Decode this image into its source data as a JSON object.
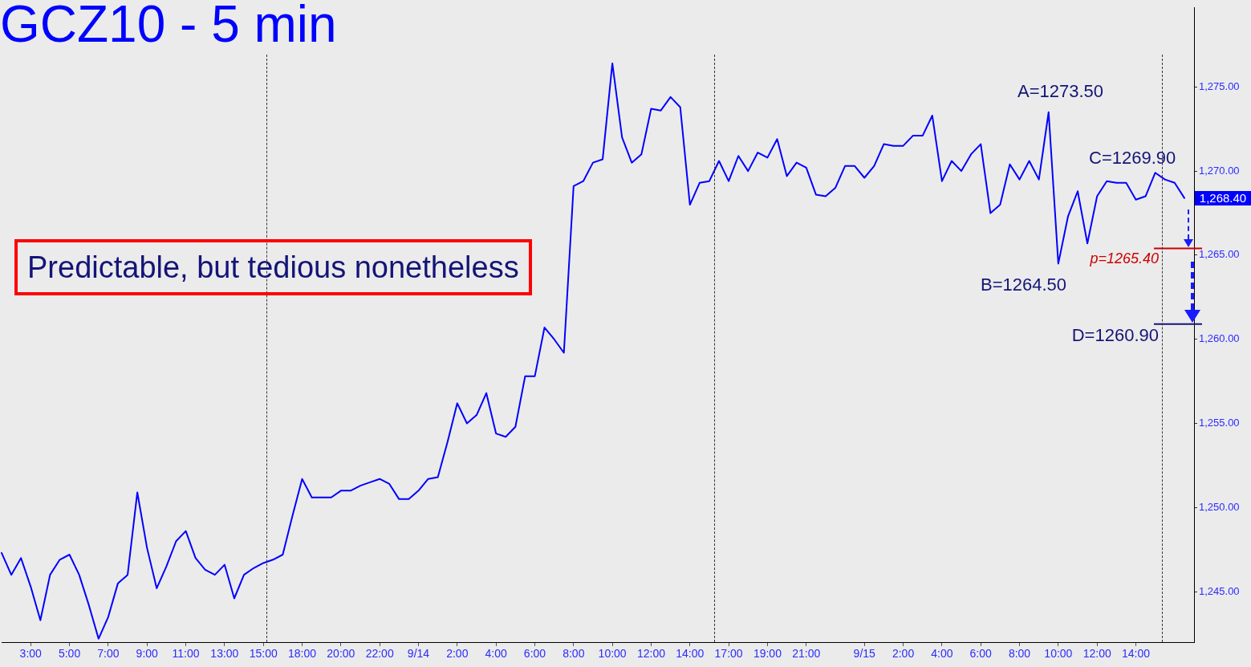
{
  "chart_data": {
    "type": "line",
    "title": "GCZ10 - 5 min",
    "categories": [
      null,
      null,
      null,
      "3:00",
      null,
      null,
      null,
      "5:00",
      null,
      null,
      null,
      "7:00",
      null,
      null,
      null,
      "9:00",
      null,
      null,
      null,
      "11:00",
      null,
      null,
      null,
      "13:00",
      null,
      null,
      null,
      "15:00",
      null,
      null,
      null,
      "18:00",
      null,
      null,
      null,
      "20:00",
      null,
      null,
      null,
      "22:00",
      null,
      null,
      null,
      "9/14",
      null,
      null,
      null,
      "2:00",
      null,
      null,
      null,
      "4:00",
      null,
      null,
      null,
      "6:00",
      null,
      null,
      null,
      "8:00",
      null,
      null,
      null,
      "10:00",
      null,
      null,
      null,
      "12:00",
      null,
      null,
      null,
      "14:00",
      null,
      null,
      null,
      "17:00",
      null,
      null,
      null,
      "19:00",
      null,
      null,
      null,
      "21:00",
      null,
      null,
      null,
      null,
      null,
      "9/15",
      null,
      null,
      null,
      "2:00",
      null,
      null,
      null,
      "4:00",
      null,
      null,
      null,
      "6:00",
      null,
      null,
      null,
      "8:00",
      null,
      null,
      null,
      "10:00",
      null,
      null,
      null,
      "12:00",
      null,
      null,
      null,
      "14:00",
      null,
      null,
      null,
      null,
      null,
      null
    ],
    "series": [
      {
        "color": "#0000ff",
        "values": [
          1247.3,
          1246.0,
          1247.0,
          1245.3,
          1243.3,
          1246.0,
          1246.9,
          1247.2,
          1246.0,
          1244.2,
          1242.2,
          1243.5,
          1245.5,
          1246.0,
          1250.9,
          1247.6,
          1245.2,
          1246.5,
          1248.0,
          1248.6,
          1247.0,
          1246.3,
          1246.0,
          1246.6,
          1244.6,
          1246.0,
          1246.4,
          1246.7,
          1246.9,
          1247.2,
          1249.5,
          1251.7,
          1250.6,
          1250.6,
          1250.6,
          1251.0,
          1251.0,
          1251.3,
          1251.5,
          1251.7,
          1251.4,
          1250.5,
          1250.5,
          1251.0,
          1251.7,
          1251.8,
          1253.9,
          1256.2,
          1255.0,
          1255.5,
          1256.8,
          1254.4,
          1254.2,
          1254.8,
          1257.8,
          1257.8,
          1260.7,
          1260.0,
          1259.2,
          1269.1,
          1269.4,
          1270.5,
          1270.7,
          1276.4,
          1272.0,
          1270.5,
          1271.0,
          1273.7,
          1273.6,
          1274.4,
          1273.8,
          1268.0,
          1269.3,
          1269.4,
          1270.6,
          1269.4,
          1270.9,
          1270.0,
          1271.1,
          1270.8,
          1271.9,
          1269.7,
          1270.5,
          1270.2,
          1268.6,
          1268.5,
          1269.0,
          1270.3,
          1270.3,
          1269.6,
          1270.3,
          1271.6,
          1271.5,
          1271.5,
          1272.1,
          1272.1,
          1273.3,
          1269.4,
          1270.6,
          1270.0,
          1271.0,
          1271.6,
          1267.5,
          1268.0,
          1270.4,
          1269.5,
          1270.6,
          1269.5,
          1273.5,
          1264.5,
          1267.3,
          1268.8,
          1265.7,
          1268.5,
          1269.4,
          1269.3,
          1269.3,
          1268.3,
          1268.5,
          1269.9,
          1269.5,
          1269.3,
          1268.4,
          null
        ]
      }
    ],
    "ylim": [
      1242.0,
      1279.7
    ],
    "yticks": [
      {
        "value": 1245,
        "label": "1,245.00"
      },
      {
        "value": 1250,
        "label": "1,250.00"
      },
      {
        "value": 1255,
        "label": "1,255.00"
      },
      {
        "value": 1260,
        "label": "1,260.00"
      },
      {
        "value": 1265,
        "label": "1,265.00"
      },
      {
        "value": 1270,
        "label": "1,270.00"
      },
      {
        "value": 1275,
        "label": "1,275.00"
      }
    ],
    "ref_lines": [
      {
        "axis": "y",
        "value": 1265.4,
        "label": "p=1265.40",
        "color": "#cc0000"
      },
      {
        "axis": "y",
        "value": 1260.9,
        "label": "D=1260.90",
        "color": "#141478"
      }
    ],
    "annotations": [
      "A=1273.50",
      "B=1264.50",
      "C=1269.90",
      "1,268.40",
      "Predictable, but tedious nonetheless"
    ],
    "grid": false,
    "legend": false,
    "marker": "none",
    "line_style": "solid"
  }
}
